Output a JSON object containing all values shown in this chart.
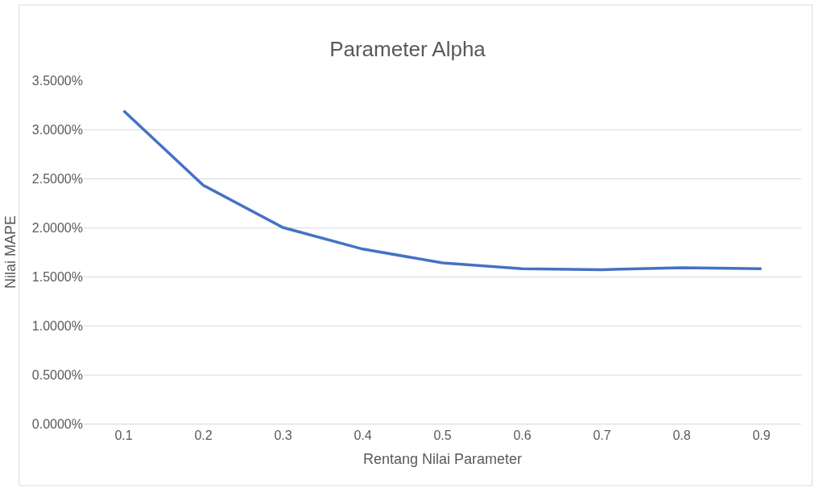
{
  "chart_data": {
    "type": "line",
    "title": "Parameter Alpha",
    "xlabel": "Rentang Nilai Parameter",
    "ylabel": "Nilai MAPE",
    "categories": [
      "0.1",
      "0.2",
      "0.3",
      "0.4",
      "0.5",
      "0.6",
      "0.7",
      "0.8",
      "0.9"
    ],
    "series": [
      {
        "color": "#4472c4",
        "values": [
          3.19,
          2.43,
          2.0,
          1.78,
          1.64,
          1.58,
          1.57,
          1.59,
          1.58
        ]
      }
    ],
    "ylim": [
      0,
      3.5
    ],
    "yticks": [
      {
        "value": 0,
        "label": "0.0000%"
      },
      {
        "value": 0.5,
        "label": "0.5000%"
      },
      {
        "value": 1,
        "label": "1.0000%"
      },
      {
        "value": 1.5,
        "label": "1.5000%"
      },
      {
        "value": 2,
        "label": "2.0000%"
      },
      {
        "value": 2.5,
        "label": "2.5000%"
      },
      {
        "value": 3,
        "label": "3.0000%"
      },
      {
        "value": 3.5,
        "label": "3.5000%"
      }
    ],
    "grid": "y",
    "marker": "none",
    "line_style": "solid"
  }
}
